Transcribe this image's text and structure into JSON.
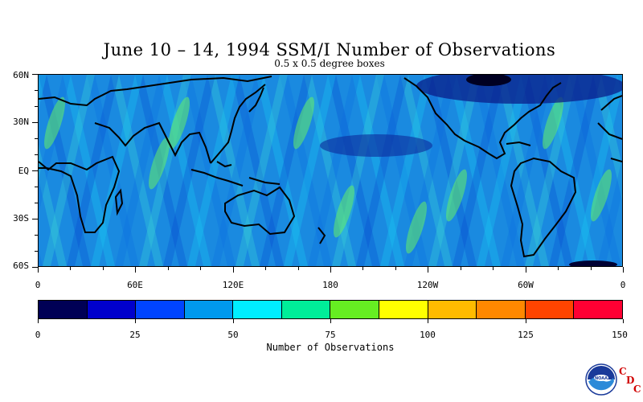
{
  "title": "June 10 – 14, 1994 SSM/I Number of Observations",
  "subtitle": "0.5 x 0.5 degree boxes",
  "map": {
    "lat_labels": [
      "60N",
      "30N",
      "EQ",
      "30S",
      "60S"
    ],
    "lon_labels": [
      "0",
      "60E",
      "120E",
      "180",
      "120W",
      "60W",
      "0"
    ],
    "lat_range": [
      -60,
      60
    ],
    "lon_range": [
      0,
      360
    ],
    "coastline_color": "#000000"
  },
  "colorbar": {
    "ticks": [
      "0",
      "25",
      "50",
      "75",
      "100",
      "125",
      "150"
    ],
    "colors": [
      "#000055",
      "#0000cc",
      "#0044ff",
      "#0099ee",
      "#00eeff",
      "#00ee99",
      "#66ee22",
      "#ffff00",
      "#ffbb00",
      "#ff8800",
      "#ff4400",
      "#ff0033"
    ],
    "range": [
      0,
      150
    ],
    "label": "Number of Observations"
  },
  "credit": {
    "logo_icon": "noaa-logo-icon",
    "cdc_letters": [
      "C",
      "D",
      "C"
    ]
  }
}
